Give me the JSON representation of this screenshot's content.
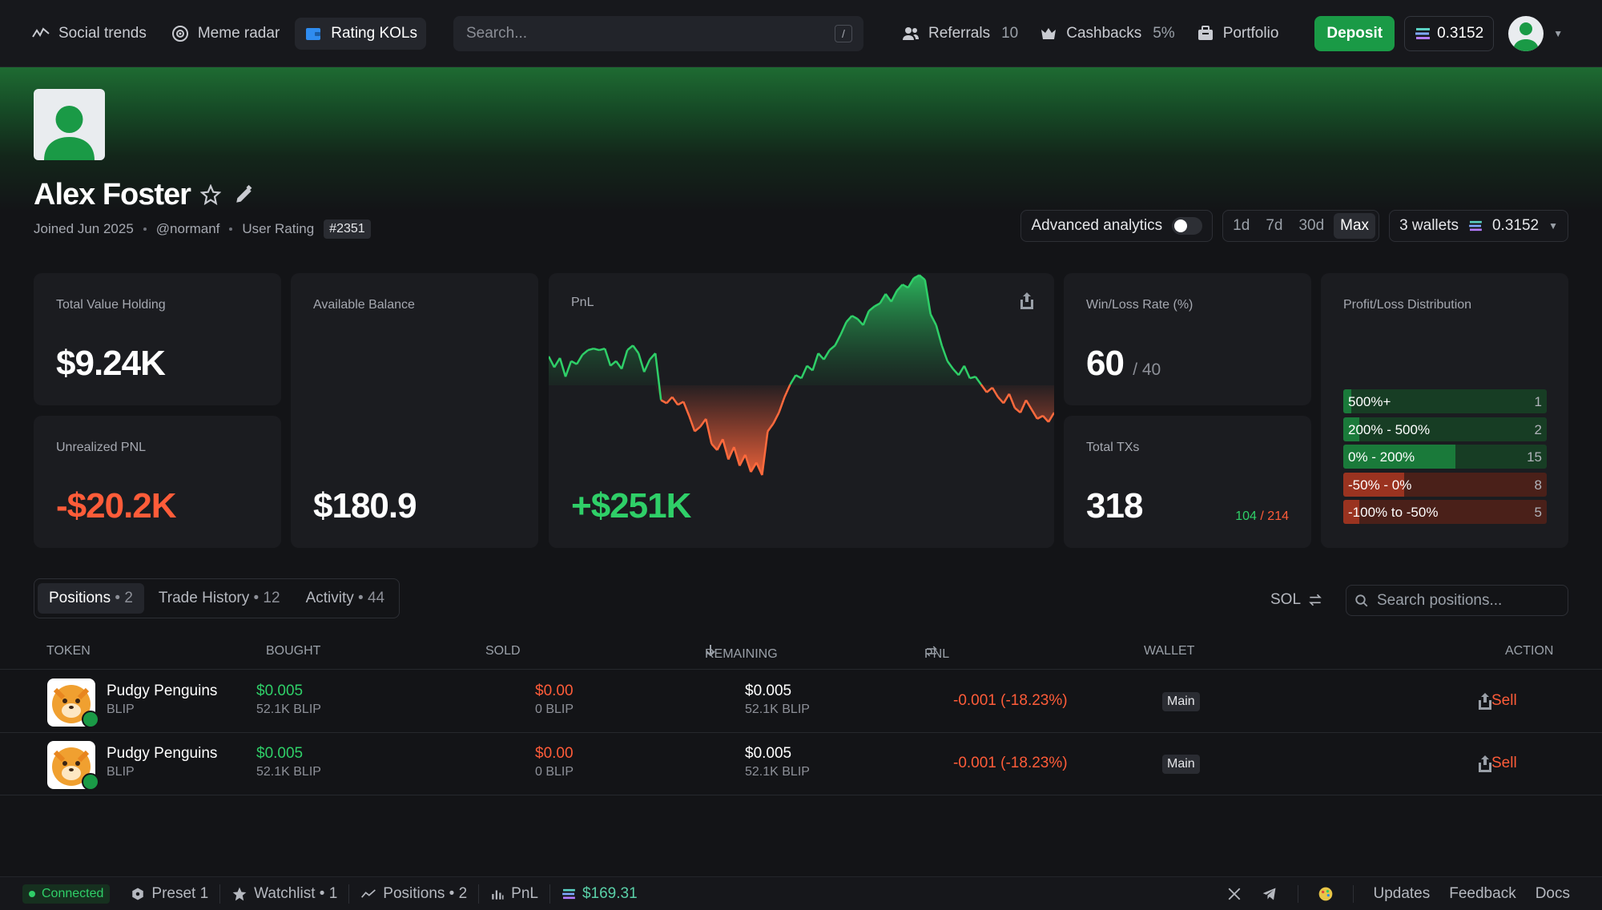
{
  "nav": {
    "social_trends": "Social trends",
    "meme_radar": "Meme radar",
    "rating_kols": "Rating KOLs",
    "search_placeholder": "Search...",
    "search_shortcut": "/",
    "referrals_label": "Referrals",
    "referrals_count": "10",
    "cashbacks_label": "Cashbacks",
    "cashbacks_value": "5%",
    "portfolio": "Portfolio",
    "deposit": "Deposit",
    "balance": "0.3152"
  },
  "profile": {
    "name": "Alex Foster",
    "joined": "Joined Jun 2025",
    "handle": "@normanf",
    "rating_label": "User Rating",
    "rating_value": "#2351"
  },
  "controls": {
    "advanced_analytics": "Advanced analytics",
    "ranges": [
      "1d",
      "7d",
      "30d",
      "Max"
    ],
    "active_range": "Max",
    "wallets_label": "3 wallets",
    "wallets_balance": "0.3152"
  },
  "stats": {
    "total_value_label": "Total Value Holding",
    "total_value": "$9.24K",
    "unrealized_label": "Unrealized PNL",
    "unrealized": "-$20.2K",
    "available_label": "Available Balance",
    "available": "$180.9",
    "pnl_label": "PnL",
    "pnl_value": "+$251K",
    "winloss_label": "Win/Loss Rate (%)",
    "win": "60",
    "loss": "/ 40",
    "txs_label": "Total TXs",
    "txs": "318",
    "txs_buy": "104",
    "txs_sell": "/ 214",
    "dist_label": "Profit/Loss Distribution",
    "distribution": [
      {
        "label": "500%+",
        "count": "1",
        "fill": 0.04,
        "color": "#1a7a3a",
        "bg": "#173d24"
      },
      {
        "label": "200% - 500%",
        "count": "2",
        "fill": 0.08,
        "color": "#1a7a3a",
        "bg": "#173d24"
      },
      {
        "label": "0% - 200%",
        "count": "15",
        "fill": 0.55,
        "color": "#1a7a3a",
        "bg": "#173d24"
      },
      {
        "label": "-50% - 0%",
        "count": "8",
        "fill": 0.3,
        "color": "#9a3320",
        "bg": "#4a2019"
      },
      {
        "label": "-100% to -50%",
        "count": "5",
        "fill": 0.08,
        "color": "#9a3320",
        "bg": "#4a2019"
      }
    ]
  },
  "pnl_chart": [
    0.48,
    0.41,
    0.47,
    0.35,
    0.45,
    0.43,
    0.49,
    0.52,
    0.53,
    0.52,
    0.53,
    0.42,
    0.45,
    0.4,
    0.52,
    0.55,
    0.5,
    0.38,
    0.46,
    0.5,
    0.2,
    0.18,
    0.22,
    0.17,
    0.19,
    0.1,
    0.0,
    0.03,
    0.08,
    -0.08,
    -0.12,
    -0.05,
    -0.18,
    -0.1,
    -0.22,
    -0.15,
    -0.26,
    -0.2,
    -0.28,
    0.0,
    0.05,
    0.12,
    0.22,
    0.3,
    0.36,
    0.34,
    0.42,
    0.39,
    0.5,
    0.46,
    0.52,
    0.55,
    0.62,
    0.7,
    0.74,
    0.72,
    0.68,
    0.77,
    0.8,
    0.82,
    0.88,
    0.83,
    0.9,
    0.94,
    0.92,
    0.98,
    1.0,
    0.97,
    0.75,
    0.68,
    0.55,
    0.45,
    0.4,
    0.36,
    0.42,
    0.34,
    0.35,
    0.3,
    0.25,
    0.28,
    0.22,
    0.18,
    0.24,
    0.15,
    0.12,
    0.2,
    0.14,
    0.08,
    0.1,
    0.06,
    0.12
  ],
  "tabs": {
    "positions": "Positions",
    "positions_count": "• 2",
    "trade_history": "Trade History",
    "trade_history_count": "• 12",
    "activity": "Activity",
    "activity_count": "• 44",
    "currency": "SOL",
    "search_placeholder": "Search positions..."
  },
  "table": {
    "headers": {
      "token": "TOKEN",
      "bought": "BOUGHT",
      "sold": "SOLD",
      "remaining": "REMAINING",
      "pnl": "PNL",
      "wallet": "WALLET",
      "action": "ACTION"
    },
    "rows": [
      {
        "name": "Pudgy Penguins",
        "symbol": "BLIP",
        "bought": "$0.005",
        "bought_amt": "52.1K BLIP",
        "sold": "$0.00",
        "sold_amt": "0 BLIP",
        "remaining": "$0.005",
        "remaining_amt": "52.1K BLIP",
        "pnl": "-0.001 (-18.23%)",
        "wallet": "Main",
        "action": "Sell"
      },
      {
        "name": "Pudgy Penguins",
        "symbol": "BLIP",
        "bought": "$0.005",
        "bought_amt": "52.1K BLIP",
        "sold": "$0.00",
        "sold_amt": "0 BLIP",
        "remaining": "$0.005",
        "remaining_amt": "52.1K BLIP",
        "pnl": "-0.001 (-18.23%)",
        "wallet": "Main",
        "action": "Sell"
      }
    ]
  },
  "footer": {
    "connected": "Connected",
    "preset": "Preset 1",
    "watchlist": "Watchlist • 1",
    "positions": "Positions • 2",
    "pnl": "PnL",
    "balance": "$169.31",
    "updates": "Updates",
    "feedback": "Feedback",
    "docs": "Docs"
  },
  "colors": {
    "accent": "#1a9a46",
    "negative": "#ff5c39",
    "positive": "#2fcf68"
  }
}
